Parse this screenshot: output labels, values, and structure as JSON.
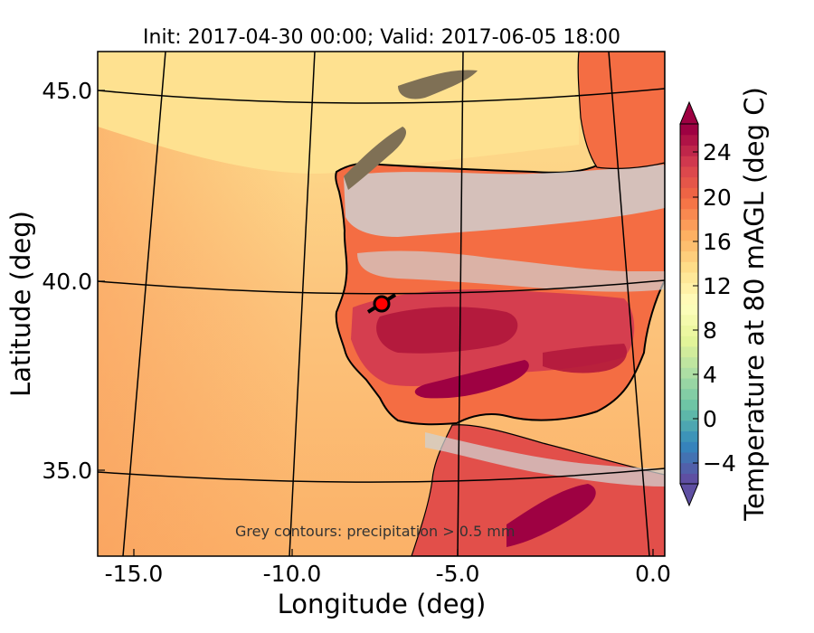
{
  "title": "Init: 2017-04-30 00:00; Valid: 2017-06-05 18:00",
  "map": {
    "x_label": "Longitude (deg)",
    "y_label": "Latitude (deg)",
    "x_ticks": [
      "-15.0",
      "-10.0",
      "-5.0",
      "0.0"
    ],
    "y_ticks": [
      "45.0",
      "40.0",
      "35.0"
    ],
    "x_range": [
      -16.0,
      0.3
    ],
    "y_range": [
      32.8,
      46.0
    ],
    "projection_grid": "curved lat/lon graticule",
    "marker": {
      "label": "location marker",
      "lon": -7.65,
      "lat": 39.35,
      "color": "#ff0000"
    },
    "annotation": "Grey contours: precipitation > 0.5 mm"
  },
  "colorbar": {
    "label": "Temperature at 80 mAGL (deg C)",
    "ticks": [
      "24",
      "20",
      "16",
      "12",
      "8",
      "4",
      "0",
      "−4"
    ],
    "range": [
      -6,
      28
    ],
    "extend": "both",
    "colormap": "Spectral_r"
  },
  "colors": {
    "ocean_warm": "#fbb168",
    "ocean_mid": "#fdc57f",
    "ocean_north": "#fee08b",
    "land_hot": "#9e0142",
    "land_warm": "#e0504a",
    "land_mild": "#f67f4b",
    "precip_contour": "#c8c8c8",
    "snow_dark": "#7f7055"
  }
}
